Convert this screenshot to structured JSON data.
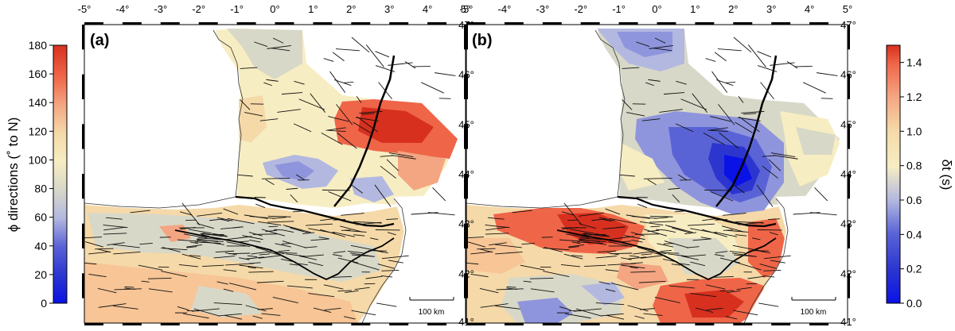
{
  "figure": {
    "panels": [
      {
        "label": "(a)",
        "variable": "fast polarization direction"
      },
      {
        "label": "(b)",
        "variable": "delay time"
      }
    ],
    "lon_ticks": [
      "-5°",
      "-4°",
      "-3°",
      "-2°",
      "-1°",
      "0°",
      "1°",
      "2°",
      "3°",
      "4°",
      "5°"
    ],
    "lat_ticks": [
      "47°",
      "46°",
      "45°",
      "44°",
      "43°",
      "42°",
      "41°"
    ],
    "scale_bar": "100 km",
    "colorbar_left": {
      "label": "ϕ directions (˚ to N)",
      "ticks": [
        "180",
        "160",
        "140",
        "120",
        "100",
        "80",
        "60",
        "40",
        "20",
        "0"
      ],
      "range": [
        0,
        180
      ]
    },
    "colorbar_right": {
      "label": "δt (s)",
      "ticks": [
        "1.4",
        "1.2",
        "1.0",
        "0.8",
        "0.6",
        "0.4",
        "0.2",
        "0.0"
      ],
      "range": [
        0.0,
        1.5
      ]
    },
    "colors": {
      "red": "#d7301f",
      "orange_red": "#ef6548",
      "salmon": "#f4a582",
      "peach": "#f7c596",
      "tan": "#f5d9a8",
      "cream": "#f7edc2",
      "grey": "#d8d8c8",
      "lavender": "#b3b8e0",
      "blue_light": "#8f95dc",
      "blue": "#5a63d6",
      "blue_dark": "#2c36cf",
      "deep_blue": "#0a12e6"
    }
  }
}
